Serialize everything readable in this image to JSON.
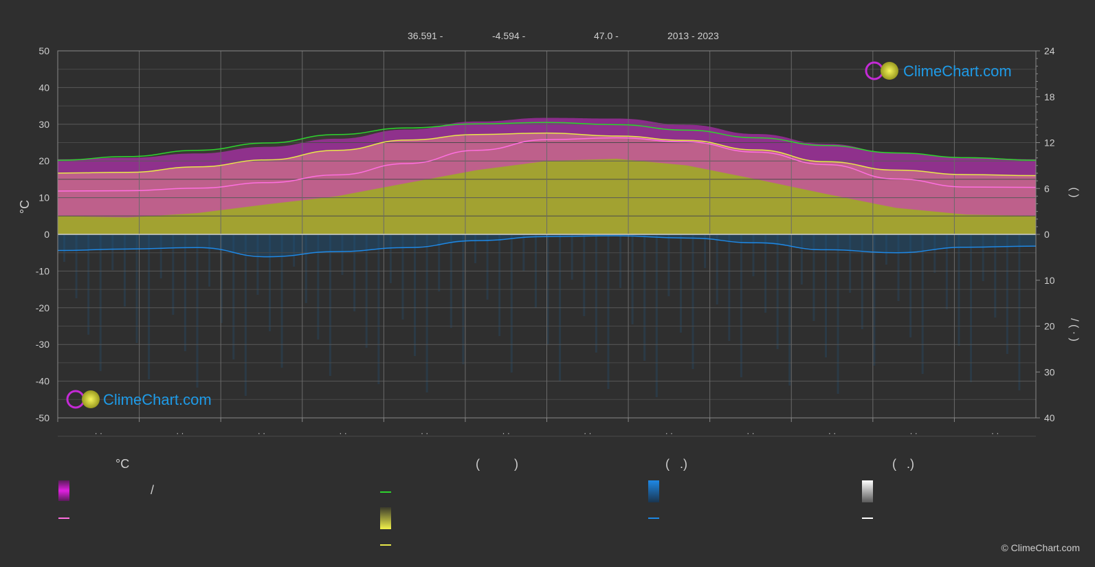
{
  "header": {
    "lat": "36.591 -",
    "lon": "-4.594 -",
    "elev": "47.0 -",
    "years": "2013 - 2023"
  },
  "brand": {
    "logo_text": "ClimeChart.com",
    "copyright": "© ClimeChart.com"
  },
  "colors": {
    "background": "#2f2f2f",
    "daylight": "#2ed42e",
    "sunshine": "#e8e84a",
    "max_temp_band": "#d62ad6",
    "mean_temp": "#ff6fe0",
    "precip": "#1e88e5",
    "sun_fill": "#a8a832",
    "brand_blue": "#1e9be8"
  },
  "legend": {
    "temp_title": "°C",
    "sun_title": "(          )",
    "rain_title": "(   .)",
    "snow_title": "(   .)",
    "slash": "/"
  },
  "chart_data": {
    "type": "line",
    "x_ticks": [
      "· ·",
      "· ·",
      "· ·",
      "· ·",
      "· ·",
      "· ·",
      "· ·",
      "· ·",
      "· ·",
      "· ·",
      "· ·",
      "· ·"
    ],
    "left_axis": {
      "label": "°C",
      "ylim": [
        -50,
        50
      ],
      "ticks": [
        50,
        40,
        30,
        20,
        10,
        0,
        -10,
        -20,
        -30,
        -40,
        -50
      ]
    },
    "right_axis_top": {
      "label": "(        )",
      "ylim": [
        0,
        24
      ],
      "ticks": [
        24,
        18,
        12,
        6,
        0
      ]
    },
    "right_axis_bottom": {
      "label": "/ (   ·   )",
      "ylim": [
        0,
        40
      ],
      "ticks": [
        0,
        10,
        20,
        30,
        40
      ]
    },
    "grid": true,
    "series": [
      {
        "key": "daylight",
        "values": [
          20.2,
          21.2,
          22.9,
          24.9,
          27.2,
          29.0,
          30.1,
          30.5,
          29.9,
          28.4,
          26.3,
          24.2,
          22.2,
          20.9,
          20.2
        ]
      },
      {
        "key": "sunshine",
        "values": [
          16.7,
          16.9,
          18.4,
          20.3,
          22.9,
          25.7,
          27.2,
          27.6,
          26.8,
          25.6,
          23.0,
          19.8,
          17.5,
          16.3,
          16.0
        ]
      },
      {
        "key": "mean_temp",
        "values": [
          11.8,
          11.9,
          12.6,
          14.1,
          16.2,
          19.3,
          22.9,
          25.8,
          26.3,
          25.2,
          22.4,
          19.0,
          15.1,
          12.9,
          12.8
        ]
      },
      {
        "key": "max_temp",
        "values": [
          18.2,
          18.6,
          19.8,
          21.6,
          23.8,
          26.3,
          28.5,
          29.5,
          29.3,
          27.6,
          25.1,
          22.4,
          19.9,
          18.6,
          18.2
        ]
      },
      {
        "key": "min_temp",
        "values": [
          5.0,
          4.6,
          5.8,
          8.2,
          10.4,
          14.0,
          17.5,
          20.0,
          20.6,
          18.8,
          15.0,
          11.0,
          7.2,
          5.4,
          5.0
        ]
      },
      {
        "key": "precip",
        "values": [
          -4.4,
          -4.0,
          -3.6,
          -6.1,
          -4.7,
          -3.6,
          -1.7,
          -0.6,
          -0.4,
          -1.0,
          -2.3,
          -4.2,
          -5.0,
          -3.5,
          -3.2
        ]
      }
    ]
  }
}
